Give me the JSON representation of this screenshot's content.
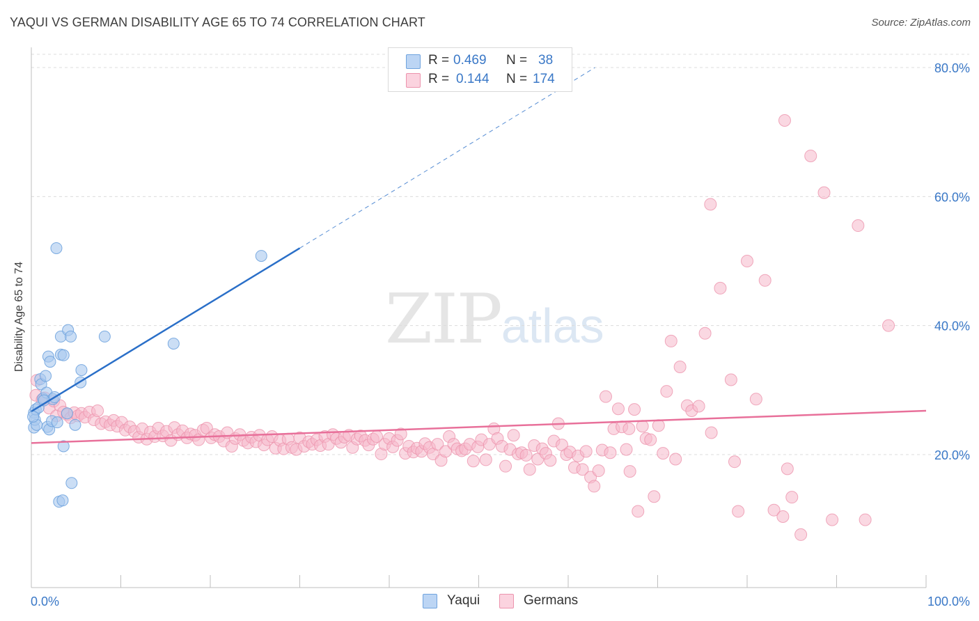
{
  "title": "YAQUI VS GERMAN DISABILITY AGE 65 TO 74 CORRELATION CHART",
  "source": "Source: ZipAtlas.com",
  "legend_top": {
    "rows": [
      {
        "r_label": "R =",
        "r_value": "0.469",
        "n_label": "N =",
        "n_value": "38",
        "color": "#a8c8ef"
      },
      {
        "r_label": "R =",
        "r_value": "0.144",
        "n_label": "N =",
        "n_value": "174",
        "color": "#f6b8cb"
      }
    ]
  },
  "legend_bottom": [
    {
      "label": "Yaqui",
      "color": "#a8c8ef"
    },
    {
      "label": "Germans",
      "color": "#f6b8cb"
    }
  ],
  "watermark": {
    "zip": "ZIP",
    "atlas": "atlas"
  },
  "chart_data": {
    "type": "scatter",
    "title": "YAQUI VS GERMAN DISABILITY AGE 65 TO 74 CORRELATION CHART",
    "xlabel": "",
    "ylabel": "Disability Age 65 to 74",
    "xlim": [
      0,
      100
    ],
    "ylim": [
      0,
      82
    ],
    "x_tick_labels": [
      "0.0%",
      "100.0%"
    ],
    "y_ticks": [
      20,
      40,
      60,
      80
    ],
    "y_tick_labels": [
      "20.0%",
      "40.0%",
      "60.0%",
      "80.0%"
    ],
    "grid": true,
    "legend_position": "top-center",
    "series": [
      {
        "name": "Yaqui",
        "color": "#a8c8ef",
        "stroke": "#6fa3de",
        "r": 0.469,
        "n": 38,
        "trend": {
          "x0": 0,
          "y0": 26.7,
          "x1": 30,
          "y1": 52.0,
          "dash_to_x": 63,
          "dash_to_y": 80.0,
          "color": "#2a6fc8"
        },
        "points": [
          [
            0.3,
            26.5
          ],
          [
            0.3,
            24.2
          ],
          [
            0.4,
            25.4
          ],
          [
            0.5,
            27.0
          ],
          [
            0.6,
            24.6
          ],
          [
            0.8,
            27.3
          ],
          [
            1.0,
            31.7
          ],
          [
            1.1,
            30.9
          ],
          [
            1.3,
            28.7
          ],
          [
            1.6,
            32.2
          ],
          [
            1.7,
            29.6
          ],
          [
            1.8,
            24.3
          ],
          [
            1.9,
            35.2
          ],
          [
            2.0,
            23.9
          ],
          [
            2.1,
            34.4
          ],
          [
            2.3,
            25.2
          ],
          [
            2.4,
            28.6
          ],
          [
            2.6,
            28.9
          ],
          [
            2.8,
            52.0
          ],
          [
            2.9,
            25.0
          ],
          [
            3.1,
            12.7
          ],
          [
            3.3,
            35.5
          ],
          [
            3.3,
            38.3
          ],
          [
            3.6,
            35.4
          ],
          [
            3.5,
            12.9
          ],
          [
            3.6,
            21.3
          ],
          [
            4.0,
            26.4
          ],
          [
            4.1,
            39.3
          ],
          [
            4.4,
            38.3
          ],
          [
            4.5,
            15.6
          ],
          [
            4.9,
            24.6
          ],
          [
            5.5,
            31.2
          ],
          [
            5.6,
            33.1
          ],
          [
            8.2,
            38.3
          ],
          [
            15.9,
            37.2
          ],
          [
            25.7,
            50.8
          ],
          [
            0.2,
            25.9
          ],
          [
            1.4,
            28.4
          ]
        ]
      },
      {
        "name": "Germans",
        "color": "#f6b8cb",
        "stroke": "#ec93ad",
        "r": 0.144,
        "n": 174,
        "trend": {
          "x0": 0,
          "y0": 21.8,
          "x1": 100,
          "y1": 26.8,
          "color": "#e8709a"
        },
        "points": [
          [
            0.5,
            29.2
          ],
          [
            0.6,
            31.5
          ],
          [
            1.2,
            28.5
          ],
          [
            1.5,
            28.8
          ],
          [
            2.0,
            27.2
          ],
          [
            2.5,
            28.3
          ],
          [
            2.8,
            26.0
          ],
          [
            3.2,
            27.6
          ],
          [
            3.6,
            26.6
          ],
          [
            4.0,
            26.2
          ],
          [
            4.4,
            25.7
          ],
          [
            4.8,
            26.5
          ],
          [
            5.2,
            26.0
          ],
          [
            5.6,
            26.4
          ],
          [
            6.0,
            25.8
          ],
          [
            6.5,
            26.6
          ],
          [
            7.0,
            25.4
          ],
          [
            7.4,
            26.8
          ],
          [
            7.8,
            24.8
          ],
          [
            8.3,
            25.1
          ],
          [
            8.8,
            24.6
          ],
          [
            9.2,
            25.3
          ],
          [
            9.6,
            24.4
          ],
          [
            10.1,
            25.0
          ],
          [
            10.5,
            23.8
          ],
          [
            11.0,
            24.3
          ],
          [
            11.5,
            23.6
          ],
          [
            12.0,
            22.7
          ],
          [
            12.4,
            24.0
          ],
          [
            12.9,
            22.4
          ],
          [
            13.3,
            23.5
          ],
          [
            13.8,
            22.8
          ],
          [
            14.2,
            24.1
          ],
          [
            14.7,
            22.9
          ],
          [
            15.1,
            23.6
          ],
          [
            15.6,
            22.2
          ],
          [
            16.0,
            24.2
          ],
          [
            16.4,
            23.1
          ],
          [
            16.9,
            23.7
          ],
          [
            17.4,
            22.6
          ],
          [
            17.8,
            23.2
          ],
          [
            18.3,
            23.0
          ],
          [
            18.7,
            22.3
          ],
          [
            19.2,
            23.8
          ],
          [
            19.6,
            24.1
          ],
          [
            20.1,
            22.6
          ],
          [
            20.5,
            23.1
          ],
          [
            21.0,
            22.8
          ],
          [
            21.5,
            22.1
          ],
          [
            21.9,
            23.4
          ],
          [
            22.4,
            21.3
          ],
          [
            22.8,
            22.5
          ],
          [
            23.3,
            23.1
          ],
          [
            23.7,
            22.2
          ],
          [
            24.2,
            21.8
          ],
          [
            24.6,
            22.7
          ],
          [
            25.1,
            22.0
          ],
          [
            25.5,
            23.0
          ],
          [
            26.0,
            21.5
          ],
          [
            26.4,
            22.3
          ],
          [
            26.9,
            22.8
          ],
          [
            27.3,
            21.0
          ],
          [
            27.8,
            22.2
          ],
          [
            28.2,
            20.9
          ],
          [
            28.7,
            22.4
          ],
          [
            29.1,
            21.1
          ],
          [
            29.6,
            20.8
          ],
          [
            30.0,
            22.6
          ],
          [
            30.5,
            21.3
          ],
          [
            31.0,
            22.0
          ],
          [
            31.4,
            21.6
          ],
          [
            31.9,
            22.3
          ],
          [
            32.3,
            21.4
          ],
          [
            32.8,
            22.8
          ],
          [
            33.2,
            21.6
          ],
          [
            33.7,
            23.1
          ],
          [
            34.1,
            22.5
          ],
          [
            34.6,
            21.9
          ],
          [
            35.0,
            22.7
          ],
          [
            35.5,
            23.0
          ],
          [
            35.9,
            21.1
          ],
          [
            36.4,
            22.4
          ],
          [
            36.8,
            22.9
          ],
          [
            37.3,
            22.2
          ],
          [
            37.7,
            21.5
          ],
          [
            38.2,
            22.4
          ],
          [
            38.6,
            22.8
          ],
          [
            39.1,
            20.1
          ],
          [
            39.5,
            21.6
          ],
          [
            40.0,
            22.5
          ],
          [
            40.4,
            21.2
          ],
          [
            40.9,
            22.2
          ],
          [
            41.3,
            23.2
          ],
          [
            41.8,
            20.2
          ],
          [
            42.2,
            21.3
          ],
          [
            42.7,
            20.4
          ],
          [
            43.1,
            21.0
          ],
          [
            43.6,
            20.5
          ],
          [
            44.0,
            21.7
          ],
          [
            44.5,
            21.1
          ],
          [
            44.9,
            20.1
          ],
          [
            45.4,
            21.6
          ],
          [
            45.8,
            19.1
          ],
          [
            46.3,
            20.5
          ],
          [
            46.7,
            22.8
          ],
          [
            47.2,
            21.6
          ],
          [
            47.6,
            20.9
          ],
          [
            48.1,
            20.6
          ],
          [
            48.5,
            20.9
          ],
          [
            49.0,
            21.6
          ],
          [
            49.4,
            19.0
          ],
          [
            49.9,
            21.2
          ],
          [
            50.3,
            22.3
          ],
          [
            50.8,
            19.2
          ],
          [
            51.2,
            21.6
          ],
          [
            51.7,
            24.0
          ],
          [
            52.1,
            22.5
          ],
          [
            52.6,
            21.3
          ],
          [
            53.0,
            18.2
          ],
          [
            53.5,
            20.8
          ],
          [
            53.9,
            23.0
          ],
          [
            54.4,
            20.1
          ],
          [
            54.8,
            20.3
          ],
          [
            55.3,
            19.9
          ],
          [
            55.7,
            17.7
          ],
          [
            56.2,
            21.4
          ],
          [
            56.6,
            19.3
          ],
          [
            57.1,
            20.9
          ],
          [
            57.5,
            20.2
          ],
          [
            58.0,
            19.1
          ],
          [
            58.4,
            22.1
          ],
          [
            58.9,
            24.8
          ],
          [
            59.3,
            21.5
          ],
          [
            59.8,
            20.0
          ],
          [
            60.2,
            20.4
          ],
          [
            60.7,
            18.0
          ],
          [
            61.1,
            19.8
          ],
          [
            61.6,
            17.7
          ],
          [
            62.0,
            20.5
          ],
          [
            62.5,
            16.5
          ],
          [
            62.9,
            15.1
          ],
          [
            63.4,
            17.5
          ],
          [
            63.8,
            20.7
          ],
          [
            64.2,
            29.0
          ],
          [
            64.7,
            20.3
          ],
          [
            65.1,
            24.0
          ],
          [
            65.6,
            27.1
          ],
          [
            66.0,
            24.3
          ],
          [
            66.5,
            20.8
          ],
          [
            66.9,
            17.4
          ],
          [
            67.4,
            27.0
          ],
          [
            67.8,
            11.2
          ],
          [
            68.3,
            24.4
          ],
          [
            68.7,
            22.5
          ],
          [
            69.2,
            22.3
          ],
          [
            69.6,
            13.5
          ],
          [
            70.1,
            24.5
          ],
          [
            70.6,
            20.2
          ],
          [
            71.0,
            29.8
          ],
          [
            71.5,
            37.6
          ],
          [
            72.0,
            19.3
          ],
          [
            72.5,
            33.6
          ],
          [
            73.3,
            27.6
          ],
          [
            73.8,
            26.8
          ],
          [
            74.6,
            27.5
          ],
          [
            75.3,
            38.8
          ],
          [
            75.9,
            58.8
          ],
          [
            76.0,
            23.4
          ],
          [
            77.0,
            45.8
          ],
          [
            78.2,
            31.6
          ],
          [
            78.6,
            18.9
          ],
          [
            79.0,
            11.2
          ],
          [
            80.0,
            50.0
          ],
          [
            81.0,
            28.6
          ],
          [
            82.0,
            47.0
          ],
          [
            83.0,
            11.4
          ],
          [
            84.0,
            10.4
          ],
          [
            84.2,
            71.8
          ],
          [
            84.5,
            17.8
          ],
          [
            85.0,
            13.4
          ],
          [
            86.0,
            7.6
          ],
          [
            87.1,
            66.3
          ],
          [
            88.6,
            60.6
          ],
          [
            89.5,
            9.9
          ],
          [
            92.4,
            55.5
          ],
          [
            93.2,
            9.9
          ],
          [
            95.8,
            40.0
          ],
          [
            66.8,
            24.0
          ]
        ]
      }
    ]
  }
}
